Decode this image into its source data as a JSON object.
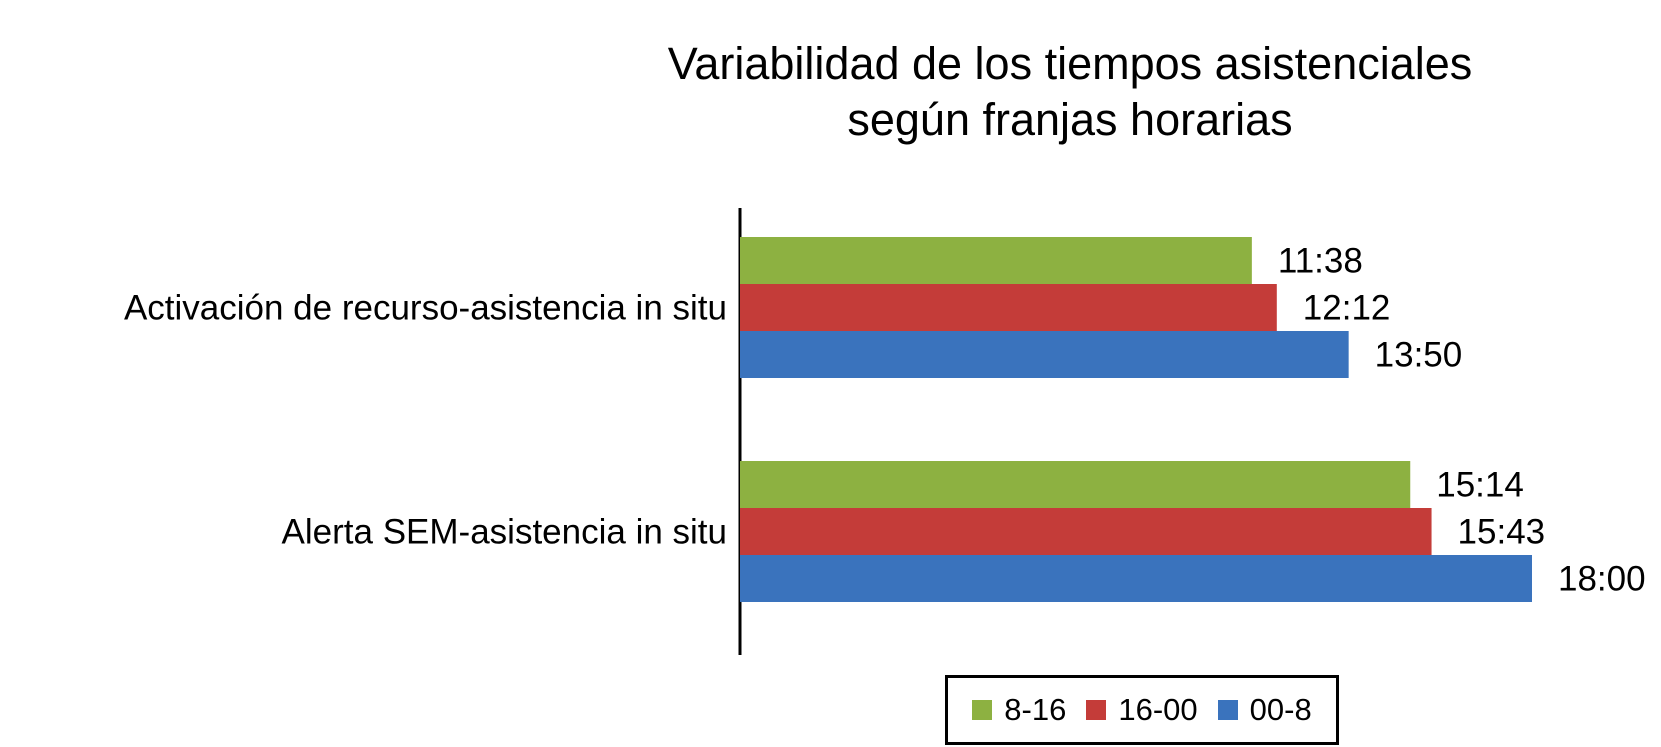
{
  "chart_data": {
    "type": "bar",
    "orientation": "horizontal",
    "title": [
      "Variabilidad de los tiempos asistenciales",
      "según franjas horarias"
    ],
    "categories": [
      "Activación de recurso-asistencia  in situ",
      "Alerta SEM-asistencia in situ"
    ],
    "series": [
      {
        "name": "8-16",
        "color": "#8db141",
        "values_min": [
          11.633,
          15.233
        ],
        "labels": [
          "11:38",
          "15:14"
        ]
      },
      {
        "name": "16-00",
        "color": "#c43c39",
        "values_min": [
          12.2,
          15.717
        ],
        "labels": [
          "12:12",
          "15:43"
        ]
      },
      {
        "name": "00-8",
        "color": "#3a73bd",
        "values_min": [
          13.833,
          18.0
        ],
        "labels": [
          "13:50",
          "18:00"
        ]
      }
    ],
    "value_unit": "mm:ss",
    "xlim": [
      0,
      18
    ],
    "x_axis_visible": false,
    "grid": false,
    "legend_position": "bottom"
  }
}
